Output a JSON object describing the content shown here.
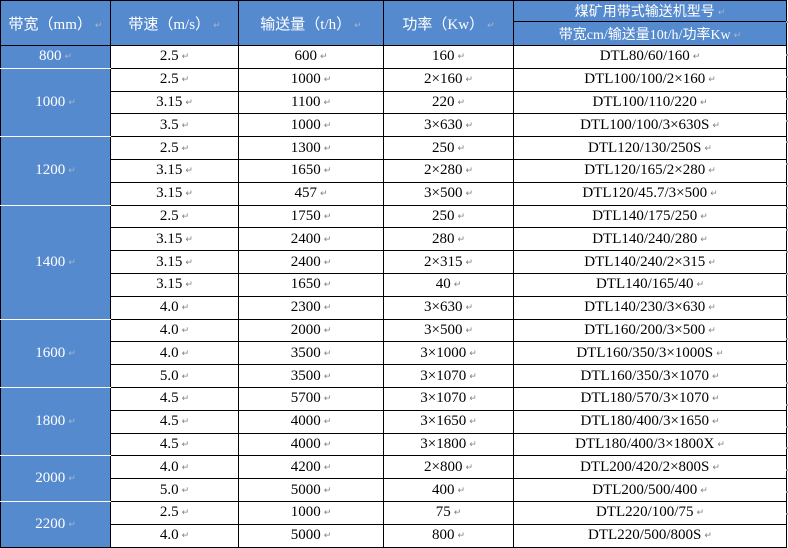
{
  "colors": {
    "header_blue": "#568ACE",
    "border": "#000000",
    "header_text": "#ffffff",
    "body_text": "#000000",
    "mark_gray": "#808080"
  },
  "marks": {
    "cell_end": "↵"
  },
  "table": {
    "columns": [
      "带宽（mm）",
      "带速（m/s）",
      "输送量（t/h）",
      "功率（Kw）"
    ],
    "model_header": {
      "title": "煤矿用带式输送机型号",
      "subtitle": "带宽cm/输送量10t/h/功率Kw"
    },
    "groups": [
      {
        "belt_width": "800",
        "rows": [
          [
            "2.5",
            "600",
            "160",
            "DTL80/60/160"
          ]
        ]
      },
      {
        "belt_width": "1000",
        "rows": [
          [
            "2.5",
            "1000",
            "2×160",
            "DTL100/100/2×160"
          ],
          [
            "3.15",
            "1100",
            "220",
            "DTL100/110/220"
          ],
          [
            "3.5",
            "1000",
            "3×630",
            "DTL100/100/3×630S"
          ]
        ]
      },
      {
        "belt_width": "1200",
        "rows": [
          [
            "2.5",
            "1300",
            "250",
            "DTL120/130/250S"
          ],
          [
            "3.15",
            "1650",
            "2×280",
            "DTL120/165/2×280"
          ],
          [
            "3.15",
            "457",
            "3×500",
            "DTL120/45.7/3×500"
          ]
        ]
      },
      {
        "belt_width": "1400",
        "rows": [
          [
            "2.5",
            "1750",
            "250",
            "DTL140/175/250"
          ],
          [
            "3.15",
            "2400",
            "280",
            "DTL140/240/280"
          ],
          [
            "3.15",
            "2400",
            "2×315",
            "DTL140/240/2×315"
          ],
          [
            "3.15",
            "1650",
            "40",
            "DTL140/165/40"
          ],
          [
            "4.0",
            "2300",
            "3×630",
            "DTL140/230/3×630"
          ]
        ]
      },
      {
        "belt_width": "1600",
        "rows": [
          [
            "4.0",
            "2000",
            "3×500",
            "DTL160/200/3×500"
          ],
          [
            "4.0",
            "3500",
            "3×1000",
            "DTL160/350/3×1000S"
          ],
          [
            "5.0",
            "3500",
            "3×1070",
            "DTL160/350/3×1070"
          ]
        ]
      },
      {
        "belt_width": "1800",
        "rows": [
          [
            "4.5",
            "5700",
            "3×1070",
            "DTL180/570/3×1070"
          ],
          [
            "4.5",
            "4000",
            "3×1650",
            "DTL180/400/3×1650"
          ],
          [
            "4.5",
            "4000",
            "3×1800",
            "DTL180/400/3×1800X"
          ]
        ]
      },
      {
        "belt_width": "2000",
        "rows": [
          [
            "4.0",
            "4200",
            "2×800",
            "DTL200/420/2×800S"
          ],
          [
            "5.0",
            "5000",
            "400",
            "DTL200/500/400"
          ]
        ]
      },
      {
        "belt_width": "2200",
        "rows": [
          [
            "2.5",
            "1000",
            "75",
            "DTL220/100/75"
          ],
          [
            "4.0",
            "5000",
            "800",
            "DTL220/500/800S"
          ]
        ]
      }
    ]
  }
}
